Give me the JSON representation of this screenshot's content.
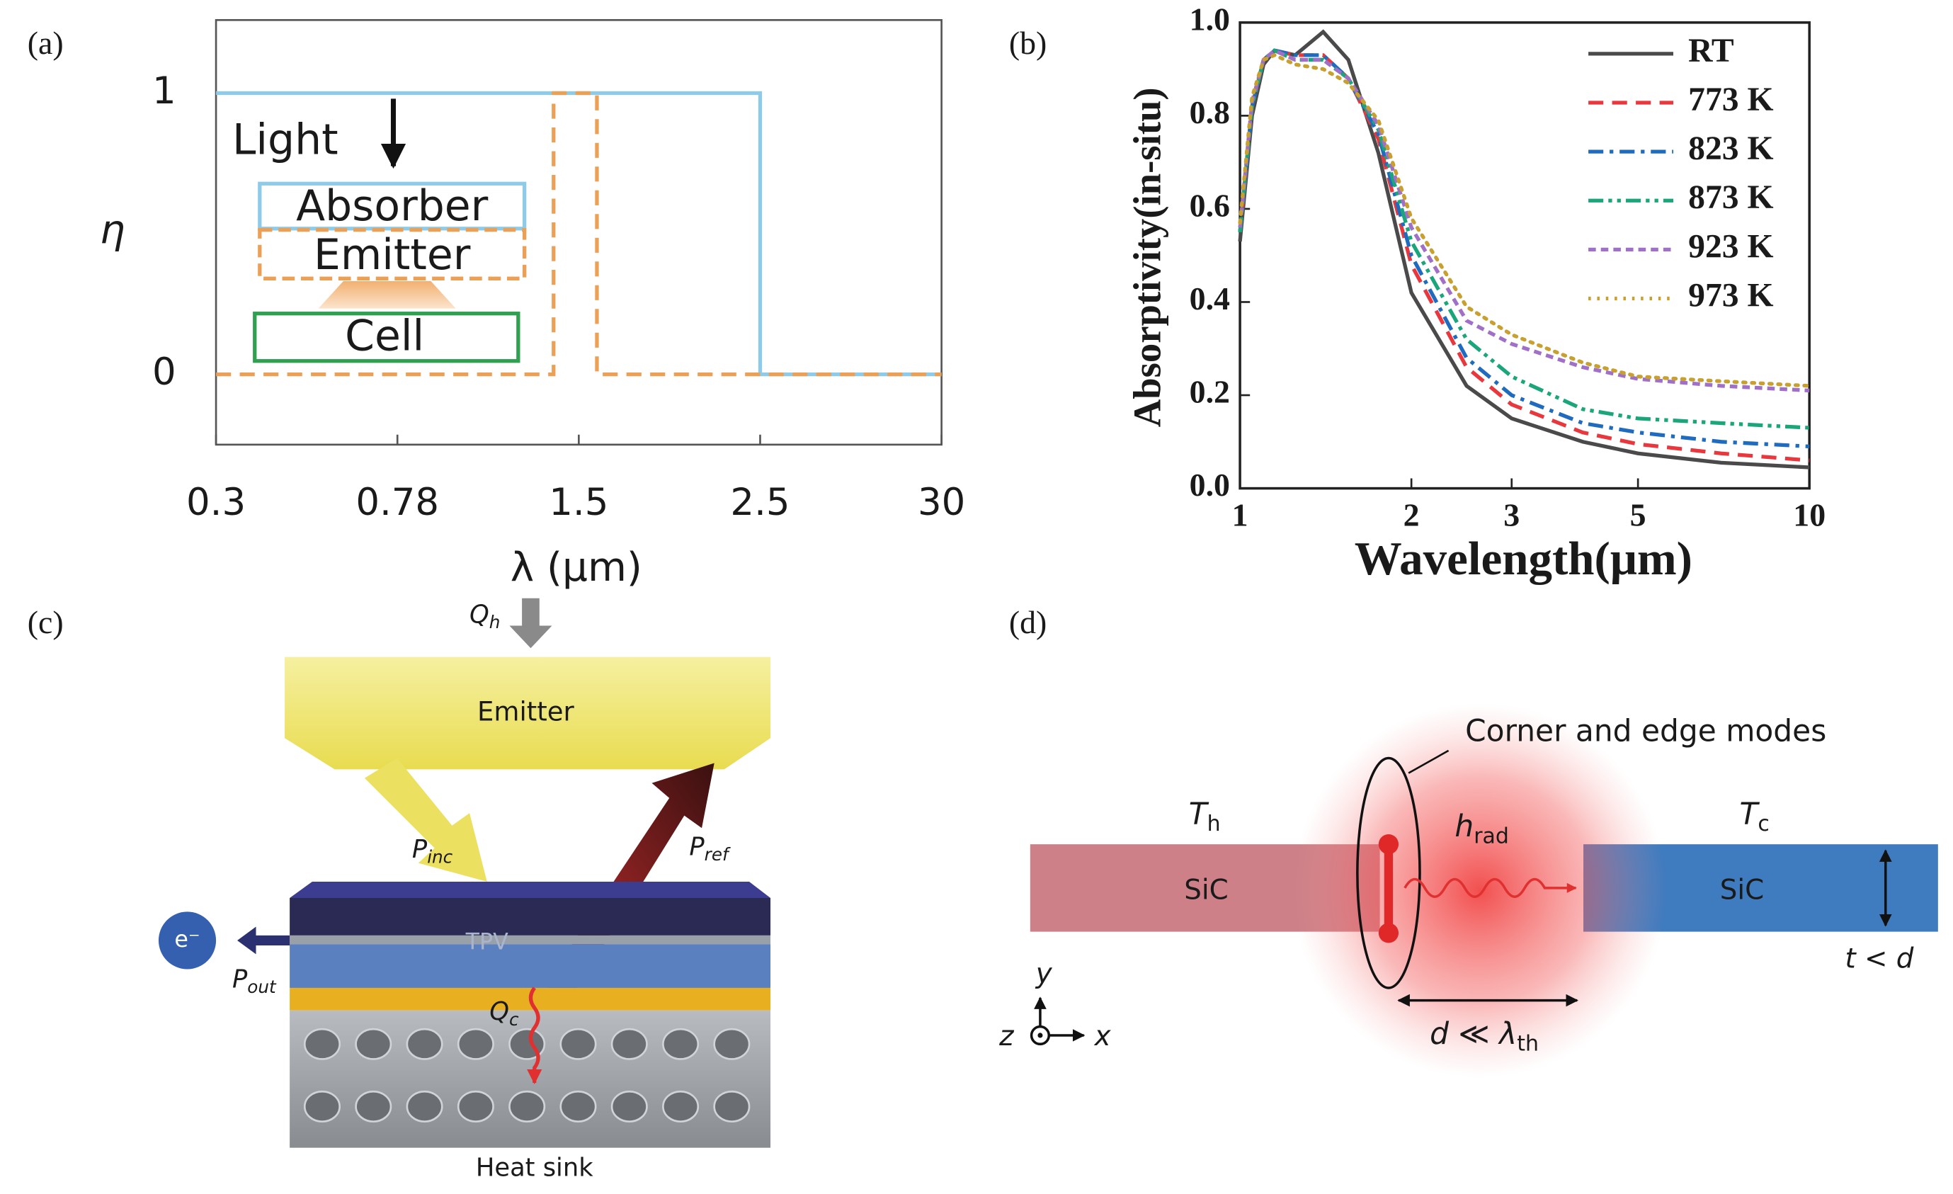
{
  "panel_labels": [
    "(a)",
    "(b)",
    "(c)",
    "(d)"
  ],
  "chart_data": [
    {
      "type": "line",
      "xlabel": "λ (μm)",
      "ylabel": "η",
      "xlim": [
        0.3,
        30
      ],
      "xticks": [
        0.3,
        0.78,
        1.5,
        2.5,
        30
      ],
      "ylim": [
        -0.25,
        1.26
      ],
      "yticks": [
        0,
        1
      ],
      "annotations": [
        "Light",
        "Absorber",
        "Emitter",
        "Cell"
      ],
      "series": [
        {
          "color": "#8ecbe8",
          "linestyle": "solid",
          "x": [
            0.3,
            2.5,
            2.5,
            30
          ],
          "values": [
            1,
            1,
            0,
            0
          ]
        },
        {
          "color": "#eba055",
          "linestyle": "dashed",
          "x": [
            0.3,
            1.4,
            1.4,
            1.6,
            1.6,
            30
          ],
          "values": [
            0,
            0,
            1,
            1,
            0,
            0
          ]
        }
      ]
    },
    {
      "type": "line",
      "xlabel": "Wavelength(μm)",
      "ylabel": "Absorptivity(in-situ)",
      "xscale": "log",
      "xlim": [
        1,
        10
      ],
      "xticks": [
        1,
        2,
        3,
        5,
        10
      ],
      "ylim": [
        0,
        1
      ],
      "yticks": [
        {
          "value": 0,
          "label": "0.0"
        },
        0.2,
        0.4,
        0.6,
        0.8,
        {
          "value": 1,
          "label": "1.0"
        }
      ],
      "legend": "upper right",
      "x": [
        1,
        1.05,
        1.1,
        1.15,
        1.25,
        1.4,
        1.55,
        1.75,
        2,
        2.5,
        3,
        4,
        5,
        7,
        10
      ],
      "series": [
        {
          "name": "RT",
          "color": "#4a4a4a",
          "linestyle": "solid",
          "values": [
            0.53,
            0.8,
            0.91,
            0.94,
            0.93,
            0.98,
            0.92,
            0.72,
            0.42,
            0.22,
            0.15,
            0.1,
            0.075,
            0.055,
            0.045
          ]
        },
        {
          "name": "773 K",
          "color": "#e8383d",
          "linestyle": "dashed",
          "values": [
            0.55,
            0.82,
            0.92,
            0.94,
            0.93,
            0.93,
            0.88,
            0.75,
            0.48,
            0.26,
            0.18,
            0.12,
            0.095,
            0.075,
            0.06
          ]
        },
        {
          "name": "823 K",
          "color": "#1f6bbf",
          "linestyle": "dashdot",
          "values": [
            0.55,
            0.82,
            0.92,
            0.94,
            0.93,
            0.93,
            0.88,
            0.76,
            0.5,
            0.28,
            0.2,
            0.14,
            0.12,
            0.1,
            0.09
          ]
        },
        {
          "name": "873 K",
          "color": "#1aa67a",
          "linestyle": "dashdotdot",
          "values": [
            0.55,
            0.82,
            0.92,
            0.94,
            0.92,
            0.92,
            0.88,
            0.77,
            0.53,
            0.32,
            0.24,
            0.17,
            0.15,
            0.14,
            0.13
          ]
        },
        {
          "name": "923 K",
          "color": "#a070c8",
          "linestyle": "shortdash",
          "values": [
            0.56,
            0.83,
            0.92,
            0.94,
            0.92,
            0.92,
            0.88,
            0.78,
            0.56,
            0.36,
            0.31,
            0.26,
            0.235,
            0.22,
            0.21
          ]
        },
        {
          "name": "973 K",
          "color": "#c8a030",
          "linestyle": "dotted",
          "values": [
            0.57,
            0.84,
            0.92,
            0.93,
            0.91,
            0.9,
            0.87,
            0.79,
            0.58,
            0.39,
            0.33,
            0.27,
            0.24,
            0.23,
            0.22
          ]
        }
      ]
    }
  ],
  "diagram_c": {
    "heat_in": {
      "symbol": "Q",
      "sub": "h"
    },
    "emitter": "Emitter",
    "incident": {
      "symbol": "P",
      "sub": "inc"
    },
    "reflected": {
      "symbol": "P",
      "sub": "ref"
    },
    "cell": "TPV",
    "electron": "e⁻",
    "output": {
      "symbol": "P",
      "sub": "out"
    },
    "heat_out": {
      "symbol": "Q",
      "sub": "c"
    },
    "sink": "Heat sink"
  },
  "diagram_d": {
    "modes": "Corner and edge modes",
    "hot": {
      "symbol": "T",
      "sub": "h"
    },
    "radiative": {
      "symbol": "h",
      "sub": "rad"
    },
    "cold": {
      "symbol": "T",
      "sub": "c"
    },
    "left_block": "SiC",
    "right_block": "SiC",
    "thickness": "t < d",
    "gap": {
      "symbol": "d ≪ λ",
      "sub": "th"
    },
    "axes": {
      "y": "y",
      "z": "z",
      "x": "x"
    }
  }
}
